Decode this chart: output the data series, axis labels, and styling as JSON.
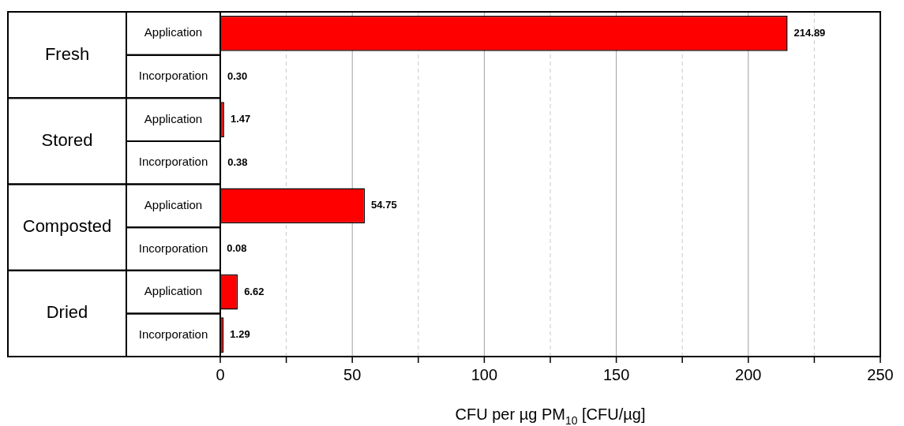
{
  "chart_data": {
    "type": "bar",
    "orientation": "horizontal",
    "categories": [
      "Application",
      "Incorporation",
      "Application",
      "Incorporation",
      "Application",
      "Incorporation",
      "Application",
      "Incorporation"
    ],
    "values": [
      214.89,
      0.3,
      1.47,
      0.38,
      54.75,
      0.08,
      6.62,
      1.29
    ],
    "value_labels": [
      "214.89",
      "0.30",
      "1.47",
      "0.38",
      "54.75",
      "0.08",
      "6.62",
      "1.29"
    ],
    "color": "#ff0000",
    "xlabel": "CFU per µg PM$_{10}$ [CFU/µg]",
    "xlim": [
      0,
      250
    ],
    "xticks": [
      0,
      {
        "value": 25,
        "label": null
      },
      50,
      {
        "value": 75,
        "label": null
      },
      100,
      {
        "value": 125,
        "label": null
      },
      150,
      {
        "value": 175,
        "label": null
      },
      200,
      {
        "value": 225,
        "label": null
      },
      250
    ],
    "grid": "x",
    "legend": false,
    "annotations": [
      "Fresh",
      "Stored",
      "Composted",
      "Dried"
    ]
  }
}
